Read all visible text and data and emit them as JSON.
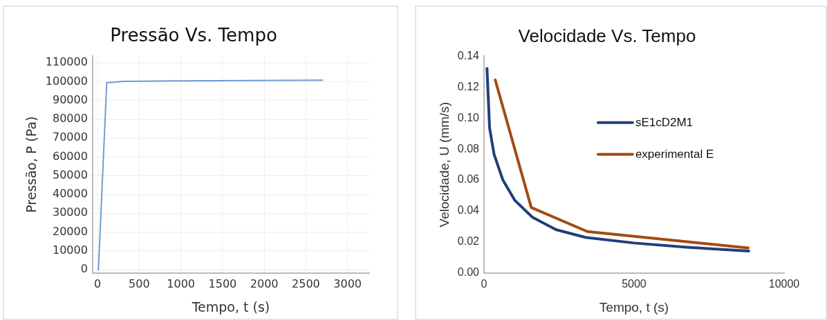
{
  "chart_data": [
    {
      "type": "line",
      "title": "Pressão Vs. Tempo",
      "xlabel": "Tempo, t (s)",
      "ylabel": "Pressão, P (Pa)",
      "series": [
        {
          "color": "#6f9bd4",
          "x": [
            10,
            110,
            300,
            1000,
            2700
          ],
          "values": [
            0,
            99500,
            100200,
            100500,
            100800
          ]
        }
      ],
      "xlim": [
        -60,
        3260
      ],
      "xticks": [
        0,
        500,
        1000,
        1500,
        2000,
        2500,
        3000
      ],
      "ylim": [
        -1800,
        113700
      ],
      "yticks": [
        0,
        10000,
        20000,
        30000,
        40000,
        50000,
        60000,
        70000,
        80000,
        90000,
        100000,
        110000
      ],
      "grid": true,
      "legend": false,
      "marker": "none",
      "line_style": "solid"
    },
    {
      "type": "line",
      "title": "Velocidade Vs. Tempo",
      "xlabel": "Tempo, t (s)",
      "ylabel": "Velocidade, U (mm/s)",
      "series": [
        {
          "name": "sE1cD2M1",
          "color": "#203f7a",
          "x": [
            100,
            187,
            335,
            630,
            1024,
            1614,
            2400,
            3386,
            5000,
            6830,
            8820
          ],
          "values": [
            0.132,
            0.0935,
            0.0767,
            0.06,
            0.047,
            0.036,
            0.028,
            0.023,
            0.0194,
            0.0166,
            0.0142
          ]
        },
        {
          "name": "experimental E",
          "color": "#a44a12",
          "x": [
            374,
            1575,
            3445,
            8800
          ],
          "values": [
            0.1246,
            0.0423,
            0.0268,
            0.0162
          ]
        }
      ],
      "xlim": [
        0,
        10000
      ],
      "xticks": [
        0,
        5000,
        10000
      ],
      "ylim": [
        0,
        0.14
      ],
      "yticks": [
        {
          "value": 0,
          "label": "0.00"
        },
        {
          "value": 0.02,
          "label": "0.02"
        },
        {
          "value": 0.04,
          "label": "0.04"
        },
        {
          "value": 0.06,
          "label": "0.06"
        },
        {
          "value": 0.08,
          "label": "0.08"
        },
        {
          "value": 0.1,
          "label": "0.10"
        },
        {
          "value": 0.12,
          "label": "0.12"
        },
        {
          "value": 0.14,
          "label": "0.14"
        }
      ],
      "grid": false,
      "legend": "right",
      "marker": "none",
      "line_style": "solid"
    }
  ]
}
